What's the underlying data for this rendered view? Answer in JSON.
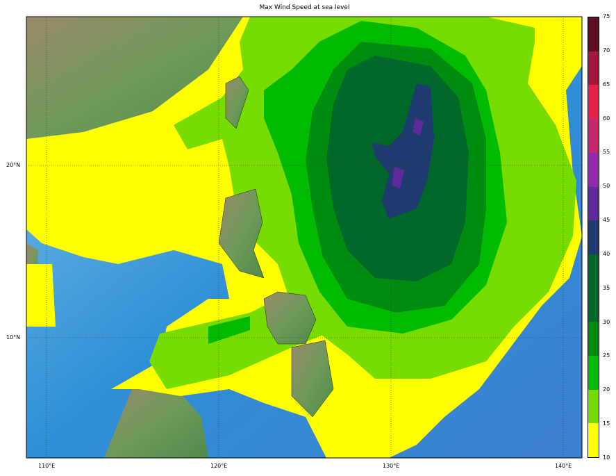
{
  "title": "Max Wind Speed at sea level",
  "map": {
    "projection": "cylindrical",
    "lon_range": [
      108.8,
      141.1
    ],
    "lat_range": [
      3.0,
      28.6
    ],
    "gridlines": "dotted",
    "x_ticks": [
      "110°E",
      "120°E",
      "130°E",
      "140°E"
    ],
    "y_ticks": [
      "20°N",
      "10°N"
    ]
  },
  "colorbar": {
    "levels": [
      "10",
      "15",
      "20",
      "25",
      "30",
      "35",
      "40",
      "45",
      "50",
      "55",
      "60",
      "65",
      "70",
      "75"
    ],
    "colors": [
      "#ffff00",
      "#77dd00",
      "#00bb00",
      "#008c10",
      "#006828",
      "#006828",
      "#1f3a6e",
      "#5f2a9c",
      "#9428b0",
      "#c22a6c",
      "#e8204c",
      "#a3173c",
      "#5e0f22"
    ]
  }
}
